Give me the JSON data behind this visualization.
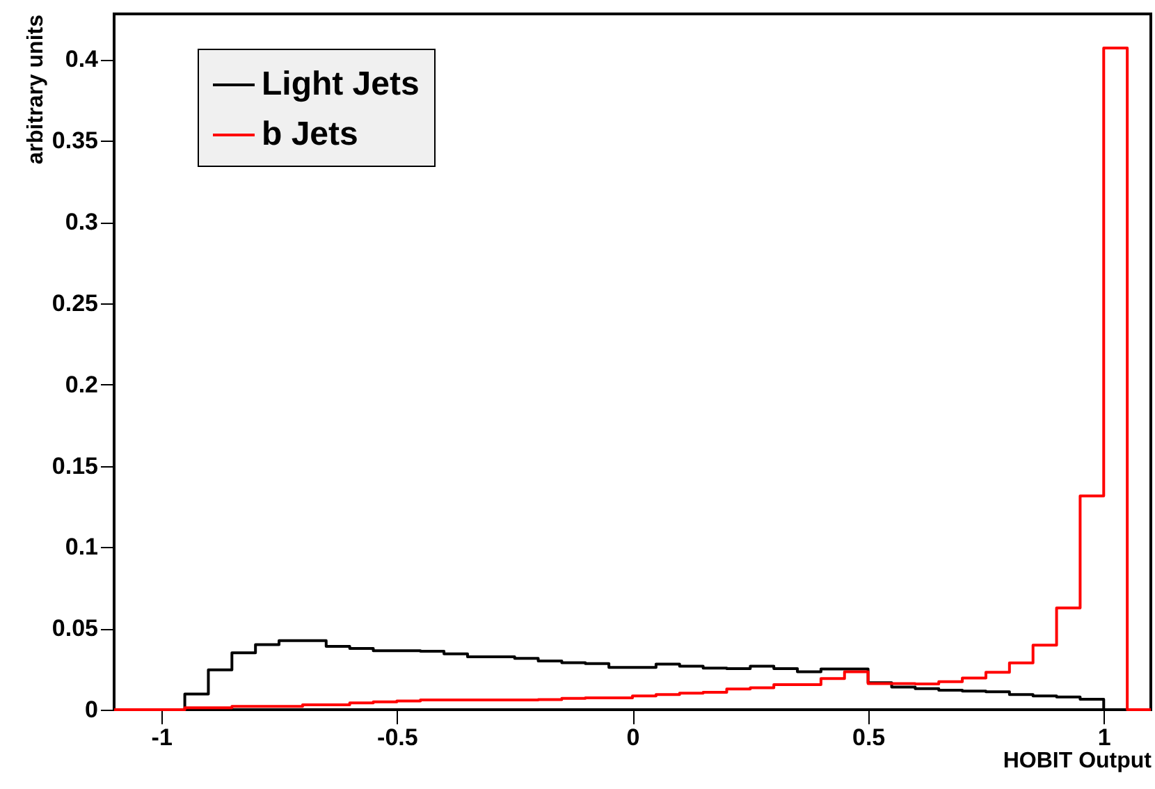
{
  "chart_data": {
    "type": "histogram",
    "xlabel": "HOBIT Output",
    "ylabel": "arbitrary units",
    "bins": [
      -1.1,
      -1.05,
      -1.0,
      -0.95,
      -0.9,
      -0.85,
      -0.8,
      -0.75,
      -0.7,
      -0.65,
      -0.6,
      -0.55,
      -0.5,
      -0.45,
      -0.4,
      -0.35,
      -0.3,
      -0.25,
      -0.2,
      -0.15,
      -0.1,
      -0.05,
      0,
      0.05,
      0.1,
      0.15,
      0.2,
      0.25,
      0.3,
      0.35,
      0.4,
      0.45,
      0.5,
      0.55,
      0.6,
      0.65,
      0.7,
      0.75,
      0.8,
      0.85,
      0.9,
      0.95,
      1.0,
      1.05,
      1.1
    ],
    "series": [
      {
        "name": "Light Jets",
        "color": "#000000",
        "values": [
          0,
          0,
          0,
          0.0096,
          0.0245,
          0.035,
          0.04,
          0.0425,
          0.0425,
          0.039,
          0.0377,
          0.0363,
          0.0363,
          0.036,
          0.0344,
          0.0325,
          0.0325,
          0.0316,
          0.03,
          0.0289,
          0.0284,
          0.026,
          0.026,
          0.028,
          0.0267,
          0.0256,
          0.0253,
          0.0267,
          0.0253,
          0.0233,
          0.025,
          0.025,
          0.0166,
          0.0139,
          0.013,
          0.012,
          0.0115,
          0.011,
          0.0093,
          0.0085,
          0.0078,
          0.0064,
          0,
          0
        ]
      },
      {
        "name": "b Jets",
        "color": "#ff0000",
        "values": [
          0,
          0,
          0,
          0.0012,
          0.0012,
          0.002,
          0.002,
          0.002,
          0.003,
          0.003,
          0.0042,
          0.0048,
          0.0053,
          0.006,
          0.006,
          0.006,
          0.006,
          0.006,
          0.0062,
          0.007,
          0.0073,
          0.0073,
          0.0085,
          0.0093,
          0.0102,
          0.0107,
          0.0127,
          0.0135,
          0.0154,
          0.0154,
          0.0191,
          0.0233,
          0.016,
          0.016,
          0.0158,
          0.0172,
          0.0195,
          0.023,
          0.0288,
          0.0397,
          0.0626,
          0.1315,
          0.407,
          0
        ]
      }
    ],
    "xlim": [
      -1.1,
      1.1
    ],
    "xticks": [
      -1,
      -0.5,
      0,
      0.5,
      1
    ],
    "ylim": [
      0,
      0.428
    ],
    "yticks": [
      0,
      0.05,
      0.1,
      0.15,
      0.2,
      0.25,
      0.3,
      0.35,
      0.4
    ],
    "grid": false,
    "legend": "top left"
  }
}
